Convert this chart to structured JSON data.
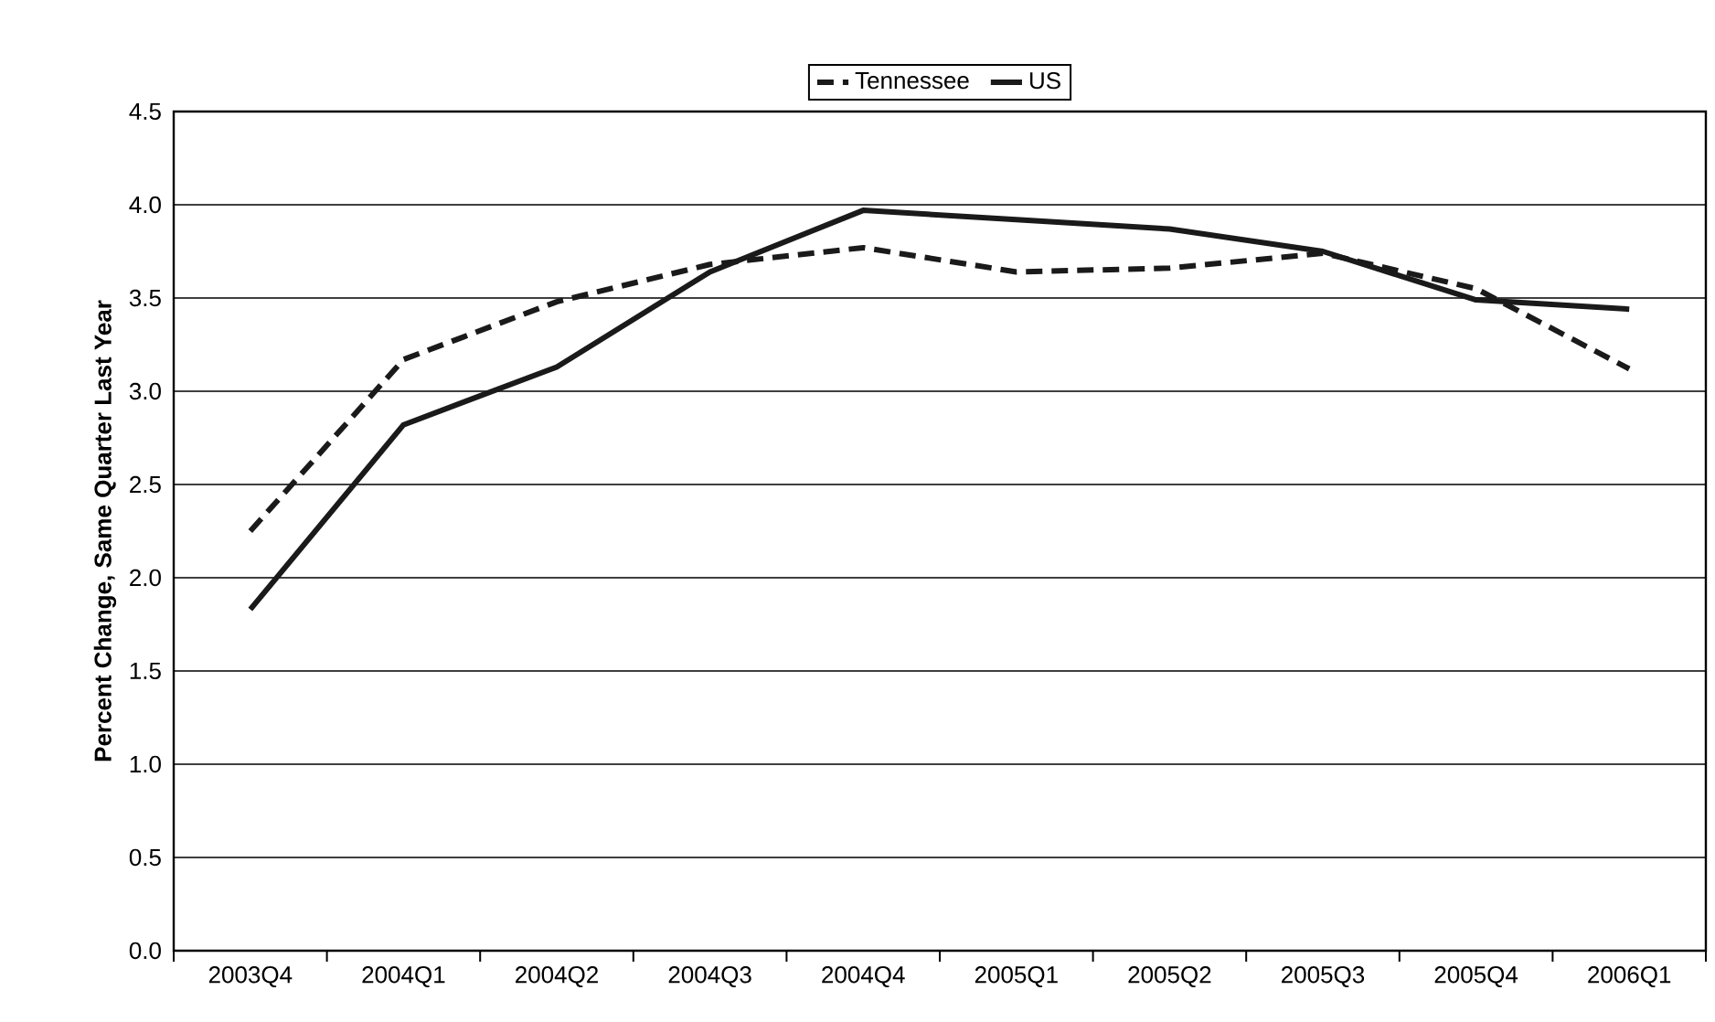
{
  "chart_data": {
    "type": "line",
    "ylabel": "Percent Change, Same Quarter Last Year",
    "categories": [
      "2003Q4",
      "2004Q1",
      "2004Q2",
      "2004Q3",
      "2004Q4",
      "2005Q1",
      "2005Q2",
      "2005Q3",
      "2005Q4",
      "2006Q1"
    ],
    "series": [
      {
        "name": "Tennessee",
        "color": "#1a1a1a",
        "line_style": "dashed",
        "values": [
          2.25,
          3.17,
          3.48,
          3.68,
          3.77,
          3.64,
          3.66,
          3.74,
          3.55,
          3.12
        ]
      },
      {
        "name": "US",
        "color": "#1a1a1a",
        "line_style": "solid",
        "values": [
          1.83,
          2.82,
          3.13,
          3.64,
          3.97,
          3.92,
          3.87,
          3.75,
          3.49,
          3.44
        ]
      }
    ],
    "ylim": [
      0,
      4.5
    ],
    "yticks": [
      {
        "value": 0,
        "label": "0.0"
      },
      {
        "value": 0.5,
        "label": "0.5"
      },
      {
        "value": 1,
        "label": "1.0"
      },
      {
        "value": 1.5,
        "label": "1.5"
      },
      {
        "value": 2,
        "label": "2.0"
      },
      {
        "value": 2.5,
        "label": "2.5"
      },
      {
        "value": 3,
        "label": "3.0"
      },
      {
        "value": 3.5,
        "label": "3.5"
      },
      {
        "value": 4,
        "label": "4.0"
      },
      {
        "value": 4.5,
        "label": "4.5"
      }
    ],
    "grid": "y",
    "legend": "top",
    "marker": "none"
  }
}
